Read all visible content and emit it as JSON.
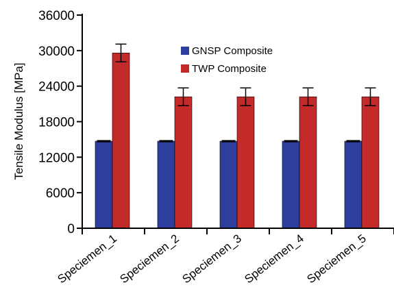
{
  "chart_data": {
    "type": "bar",
    "title": "",
    "xlabel": "",
    "ylabel": "Tensile Modulus [MPa]",
    "ylim": [
      0,
      36000
    ],
    "yticks": [
      0,
      6000,
      12000,
      18000,
      24000,
      30000,
      36000
    ],
    "grid": false,
    "legend_position": "top-center",
    "categories": [
      "Speciemen_1",
      "Speciemen_2",
      "Speciemen_3",
      "Speciemen_4",
      "Speciemen_5"
    ],
    "series": [
      {
        "name": "GNSP Composite",
        "color": "#2e3e9c",
        "values": [
          14700,
          14700,
          14700,
          14700,
          14700
        ],
        "error": [
          100,
          100,
          100,
          100,
          100
        ]
      },
      {
        "name": "TWP Composite",
        "color": "#c32a2a",
        "values": [
          29600,
          22200,
          22200,
          22200,
          22200
        ],
        "error": [
          1500,
          1500,
          1500,
          1500,
          1500
        ]
      }
    ]
  }
}
